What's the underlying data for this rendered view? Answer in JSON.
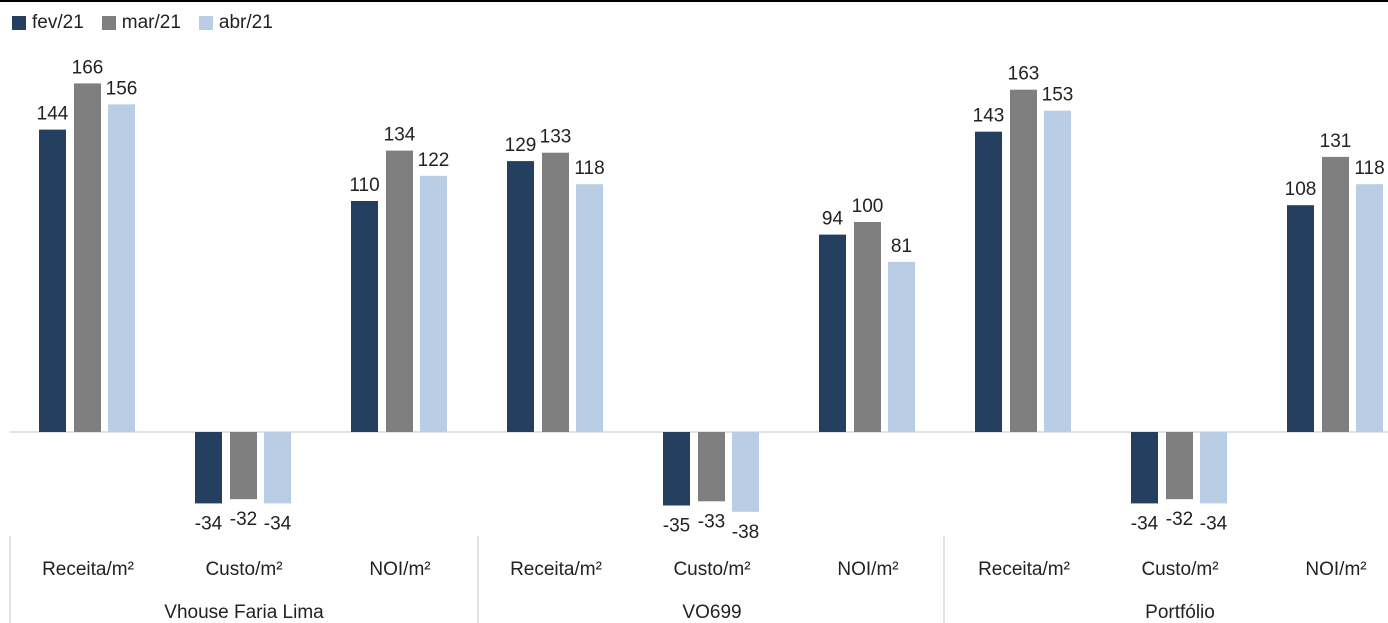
{
  "chart_data": {
    "type": "bar",
    "groups": [
      {
        "name": "Vhouse Faria Lima",
        "categories": [
          "Receita/m²",
          "Custo/m²",
          "NOI/m²"
        ]
      },
      {
        "name": "VO699",
        "categories": [
          "Receita/m²",
          "Custo/m²",
          "NOI/m²"
        ]
      },
      {
        "name": "Portfólio",
        "categories": [
          "Receita/m²",
          "Custo/m²",
          "NOI/m²"
        ]
      }
    ],
    "series": [
      {
        "name": "fev/21",
        "color": "#243f60",
        "values": [
          144,
          -34,
          110,
          129,
          -35,
          94,
          143,
          -34,
          108
        ]
      },
      {
        "name": "mar/21",
        "color": "#7f7f7f",
        "values": [
          166,
          -32,
          134,
          133,
          -33,
          100,
          163,
          -32,
          131
        ]
      },
      {
        "name": "abr/21",
        "color": "#b9cde5",
        "values": [
          156,
          -34,
          122,
          118,
          -38,
          81,
          153,
          -34,
          118
        ]
      }
    ],
    "legend_position": "top-left",
    "grid": false
  }
}
